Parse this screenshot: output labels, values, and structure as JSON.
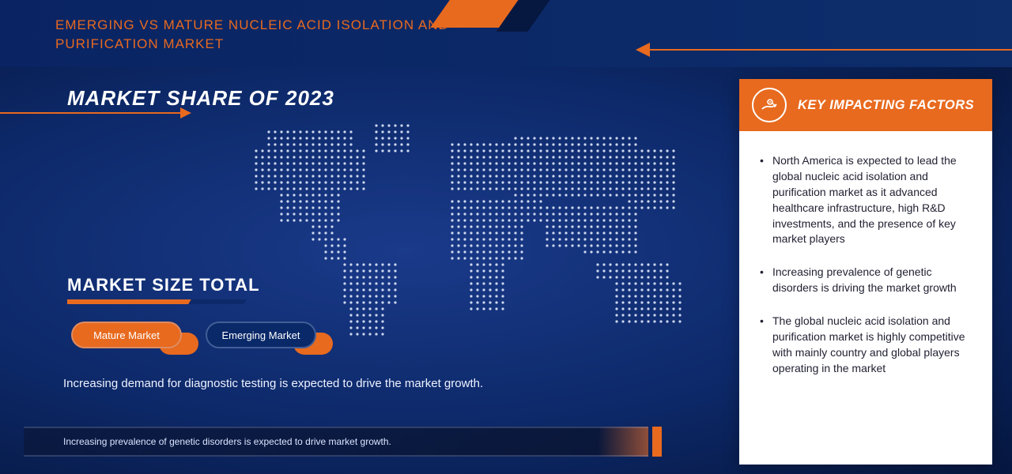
{
  "header": {
    "title": "EMERGING VS MATURE NUCLEIC ACID ISOLATION AND PURIFICATION MARKET"
  },
  "colors": {
    "accent_orange": "#e86a1f",
    "gradient_dark": "#061740",
    "gradient_mid": "#0d2969",
    "gradient_light": "#1a3a8a",
    "panel_bg": "#ffffff",
    "text_light": "#eef2ff",
    "text_dark": "#223344"
  },
  "main": {
    "share_title": "MARKET SHARE OF 2023",
    "size_title": "MARKET SIZE TOTAL",
    "pills": {
      "mature": "Mature Market",
      "emerging": "Emerging Market"
    },
    "body_text": "Increasing demand for diagnostic testing is expected to drive the market growth.",
    "footer_text": "Increasing prevalence of genetic disorders is expected to drive market growth."
  },
  "panel": {
    "title": "KEY IMPACTING FACTORS",
    "items": [
      "North America is expected to lead the global nucleic acid isolation and purification market as it advanced healthcare infrastructure, high R&D investments, and the presence of key market players",
      "Increasing prevalence of genetic disorders is driving the market growth",
      "The global nucleic acid isolation and purification market is highly competitive with mainly country and global players operating in the market"
    ]
  },
  "map": {
    "dot_color": "#cdd8ef",
    "dot_radius": 1.6,
    "spacing": 8
  },
  "typography": {
    "header_title_fontsize": 17,
    "share_title_fontsize": 26,
    "size_title_fontsize": 22,
    "body_fontsize": 15,
    "footer_fontsize": 12,
    "panel_title_fontsize": 16.5,
    "panel_item_fontsize": 14
  }
}
